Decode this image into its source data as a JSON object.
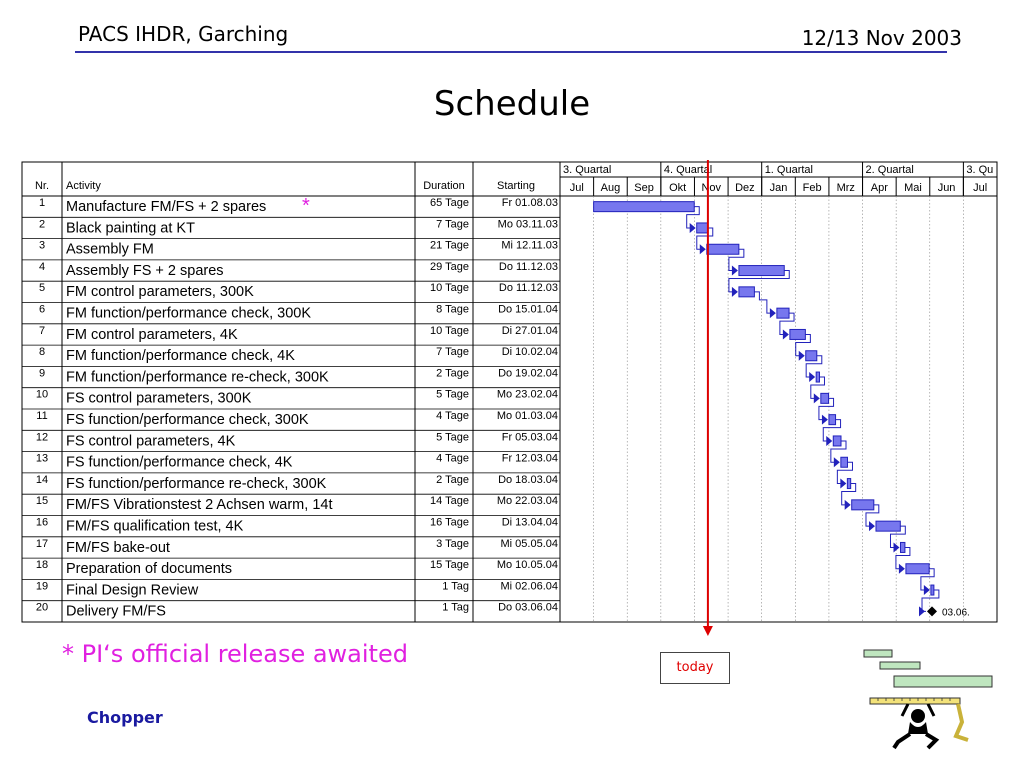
{
  "header": {
    "left": "PACS IHDR, Garching",
    "right": "12/13 Nov 2003"
  },
  "title": "Schedule",
  "table": {
    "col_nr": "Nr.",
    "col_activity": "Activity",
    "col_duration": "Duration",
    "col_starting": "Starting",
    "quarters": [
      "3. Quartal",
      "4. Quartal",
      "1. Quartal",
      "2. Quartal",
      "3. Qu"
    ],
    "months": [
      "Jul",
      "Aug",
      "Sep",
      "Okt",
      "Nov",
      "Dez",
      "Jan",
      "Feb",
      "Mrz",
      "Apr",
      "Mai",
      "Jun",
      "Jul"
    ],
    "rows": [
      {
        "nr": "1",
        "activity": "Manufacture FM/FS + 2 spares",
        "star": "*",
        "duration": "65 Tage",
        "start": "Fr 01.08.03"
      },
      {
        "nr": "2",
        "activity": "Black painting at KT",
        "duration": "7 Tage",
        "start": "Mo 03.11.03"
      },
      {
        "nr": "3",
        "activity": "Assembly FM",
        "duration": "21 Tage",
        "start": "Mi 12.11.03"
      },
      {
        "nr": "4",
        "activity": "Assembly FS + 2 spares",
        "duration": "29 Tage",
        "start": "Do 11.12.03"
      },
      {
        "nr": "5",
        "activity": "FM control parameters, 300K",
        "duration": "10 Tage",
        "start": "Do 11.12.03"
      },
      {
        "nr": "6",
        "activity": "FM function/performance check, 300K",
        "duration": "8 Tage",
        "start": "Do 15.01.04"
      },
      {
        "nr": "7",
        "activity": "FM control parameters, 4K",
        "duration": "10 Tage",
        "start": "Di 27.01.04"
      },
      {
        "nr": "8",
        "activity": "FM  function/performance check, 4K",
        "duration": "7 Tage",
        "start": "Di 10.02.04"
      },
      {
        "nr": "9",
        "activity": "FM function/performance re-check, 300K",
        "duration": "2 Tage",
        "start": "Do 19.02.04"
      },
      {
        "nr": "10",
        "activity": "FS control parameters, 300K",
        "duration": "5 Tage",
        "start": "Mo 23.02.04"
      },
      {
        "nr": "11",
        "activity": "FS function/performance check, 300K",
        "duration": "4 Tage",
        "start": "Mo 01.03.04"
      },
      {
        "nr": "12",
        "activity": "FS control parameters, 4K",
        "duration": "5 Tage",
        "start": "Fr 05.03.04"
      },
      {
        "nr": "13",
        "activity": "FS  function/performance check, 4K",
        "duration": "4 Tage",
        "start": "Fr 12.03.04"
      },
      {
        "nr": "14",
        "activity": "FS function/performance re-check, 300K",
        "duration": "2 Tage",
        "start": "Do 18.03.04"
      },
      {
        "nr": "15",
        "activity": "FM/FS  Vibrationstest 2 Achsen warm, 14t",
        "duration": "14 Tage",
        "start": "Mo 22.03.04"
      },
      {
        "nr": "16",
        "activity": "FM/FS qualification test, 4K",
        "duration": "16 Tage",
        "start": "Di 13.04.04"
      },
      {
        "nr": "17",
        "activity": "FM/FS bake-out",
        "duration": "3 Tage",
        "start": "Mi 05.05.04"
      },
      {
        "nr": "18",
        "activity": "Preparation of documents",
        "duration": "15 Tage",
        "start": "Mo 10.05.04"
      },
      {
        "nr": "19",
        "activity": "Final Design Review",
        "duration": "1 Tag",
        "start": "Mi 02.06.04"
      },
      {
        "nr": "20",
        "activity": "Delivery FM/FS",
        "duration": "1 Tag",
        "start": "Do 03.06.04"
      }
    ]
  },
  "milestone_label": "03.06.",
  "note": "* PI‘s official release awaited",
  "today_label": "today",
  "footer": "Chopper",
  "colors": {
    "bar_fill": "#7777ee",
    "bar_stroke": "#2222bb",
    "today_line": "#dd0000",
    "header_rule": "#3333aa",
    "note": "#e020e0",
    "footer": "#1a1aa0",
    "link": "#2222bb"
  }
}
